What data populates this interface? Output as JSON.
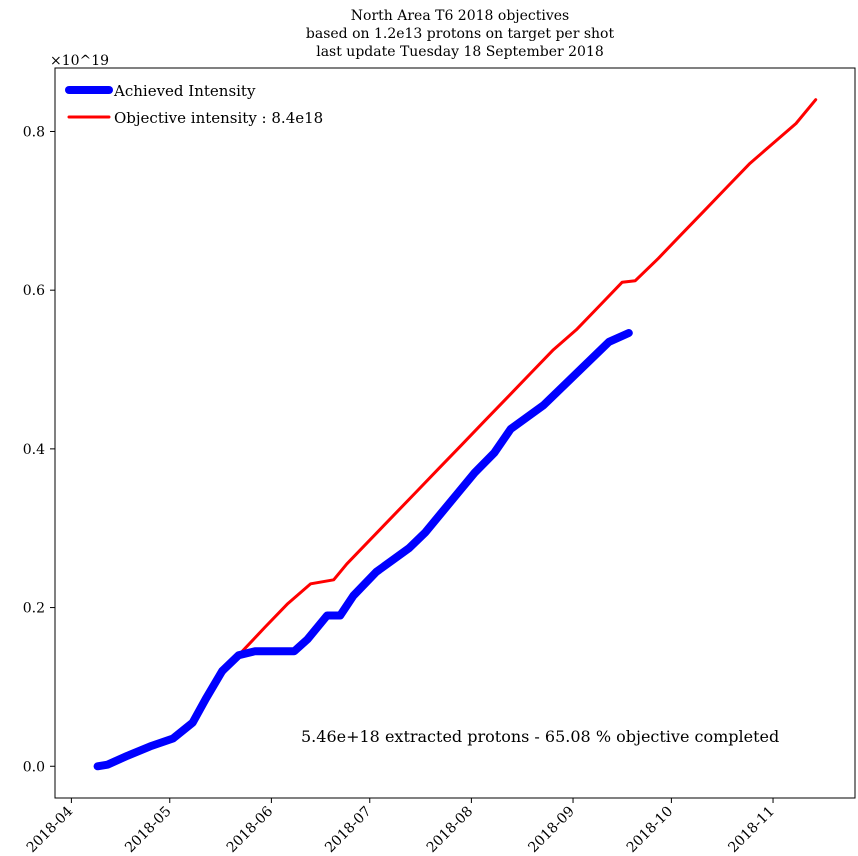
{
  "chart_data": {
    "type": "line",
    "title_lines": [
      "North Area T6 2018 objectives",
      "based on 1.2e13 protons on target per shot",
      "last update Tuesday 18 September 2018"
    ],
    "y_scale_label": "×10^19",
    "xlabel": "",
    "ylabel": "",
    "x_ticks": [
      "2018-04",
      "2018-05",
      "2018-06",
      "2018-07",
      "2018-08",
      "2018-09",
      "2018-10",
      "2018-11"
    ],
    "y_ticks": [
      "0.0",
      "0.2",
      "0.4",
      "0.6",
      "0.8"
    ],
    "xlim": [
      "2018-03-27",
      "2018-11-26"
    ],
    "ylim": [
      -4e+17,
      8.8e+18
    ],
    "legend": {
      "placement": "top-left"
    },
    "annotation": "5.46e+18 extracted protons - 65.08 % objective completed",
    "series": [
      {
        "name": "Achieved Intensity",
        "color": "#0000ff",
        "x": [
          "2018-04-09",
          "2018-04-12",
          "2018-04-18",
          "2018-04-25",
          "2018-05-02",
          "2018-05-08",
          "2018-05-12",
          "2018-05-17",
          "2018-05-22",
          "2018-05-27",
          "2018-05-30",
          "2018-06-08",
          "2018-06-12",
          "2018-06-18",
          "2018-06-22",
          "2018-06-26",
          "2018-07-03",
          "2018-07-08",
          "2018-07-13",
          "2018-07-18",
          "2018-07-23",
          "2018-07-28",
          "2018-08-02",
          "2018-08-08",
          "2018-08-13",
          "2018-08-18",
          "2018-08-23",
          "2018-08-28",
          "2018-09-02",
          "2018-09-07",
          "2018-09-12",
          "2018-09-18"
        ],
        "values": [
          0.0,
          2e+16,
          1.3e+17,
          2.5e+17,
          3.5e+17,
          5.5e+17,
          8.5e+17,
          1.2e+18,
          1.4e+18,
          1.45e+18,
          1.45e+18,
          1.45e+18,
          1.6e+18,
          1.9e+18,
          1.9e+18,
          2.15e+18,
          2.45e+18,
          2.6e+18,
          2.75e+18,
          2.95e+18,
          3.2e+18,
          3.45e+18,
          3.7e+18,
          3.95e+18,
          4.25e+18,
          4.4e+18,
          4.55e+18,
          4.75e+18,
          4.95e+18,
          5.15e+18,
          5.35e+18,
          5.46e+18
        ]
      },
      {
        "name": "Objective intensity : 8.4e18",
        "color": "#ff0000",
        "x": [
          "2018-04-09",
          "2018-04-12",
          "2018-04-18",
          "2018-04-25",
          "2018-05-02",
          "2018-05-08",
          "2018-05-12",
          "2018-05-17",
          "2018-05-22",
          "2018-05-30",
          "2018-06-06",
          "2018-06-13",
          "2018-06-20",
          "2018-06-24",
          "2018-07-01",
          "2018-07-08",
          "2018-07-15",
          "2018-07-22",
          "2018-07-29",
          "2018-08-05",
          "2018-08-12",
          "2018-08-19",
          "2018-08-26",
          "2018-09-02",
          "2018-09-09",
          "2018-09-16",
          "2018-09-20",
          "2018-09-27",
          "2018-10-04",
          "2018-10-11",
          "2018-10-18",
          "2018-10-25",
          "2018-11-01",
          "2018-11-08",
          "2018-11-14"
        ],
        "values": [
          0.0,
          2e+16,
          1.2e+17,
          2.3e+17,
          3.5e+17,
          5.5e+17,
          8.5e+17,
          1.15e+18,
          1.4e+18,
          1.75e+18,
          2.05e+18,
          2.3e+18,
          2.35e+18,
          2.55e+18,
          2.85e+18,
          3.15e+18,
          3.45e+18,
          3.75e+18,
          4.05e+18,
          4.35e+18,
          4.65e+18,
          4.95e+18,
          5.25e+18,
          5.5e+18,
          5.8e+18,
          6.1e+18,
          6.12e+18,
          6.4e+18,
          6.7e+18,
          7e+18,
          7.3e+18,
          7.6e+18,
          7.85e+18,
          8.1e+18,
          8.4e+18
        ]
      }
    ]
  }
}
